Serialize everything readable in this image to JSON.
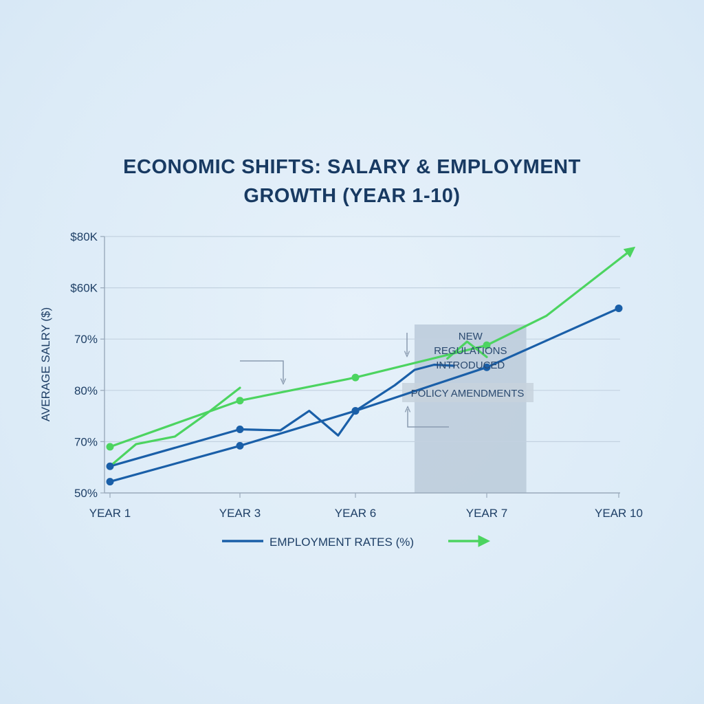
{
  "title_lines": [
    "ECONOMIC SHIFTS: SALARY & EMPLOYMENT",
    "GROWTH (YEAR 1-10)"
  ],
  "colors": {
    "background": "#dfedf8",
    "title": "#183a62",
    "salary_series": "#1a5fa8",
    "employment_series": "#4cd460",
    "grid": "#c3d2e0",
    "shaded_region": "#b5c6d6",
    "annotation_box": "#c7d2dd"
  },
  "legend": {
    "label": "EMPLOYMENT RATES (%)",
    "position": "bottom-center"
  },
  "annotations": [
    {
      "id": "new-regulations",
      "lines": [
        "NEW",
        "REGULATIONS",
        "INTRODUCED"
      ]
    },
    {
      "id": "policy-amendments",
      "lines": [
        "POLICY AMENDMENTS"
      ]
    }
  ],
  "chart_data": {
    "type": "line",
    "title": "ECONOMIC SHIFTS: SALARY & EMPLOYMENT GROWTH (YEAR 1-10)",
    "xlabel": "",
    "ylabel": "AVERAGE SALRY ($)",
    "categories": [
      "YEAR 1",
      "YEAR 3",
      "YEAR 6",
      "YEAR 7",
      "YEAR 10"
    ],
    "y_tick_labels": [
      "50%",
      "70%",
      "80%",
      "70%",
      "$60K",
      "$80K"
    ],
    "ylim": [
      0,
      5
    ],
    "grid": true,
    "shaded_span": {
      "from": 2.45,
      "to": 3.3
    },
    "series": [
      {
        "role": "salary_trend",
        "color": "#1a5fa8",
        "x": [
          0,
          1,
          2,
          3,
          4
        ],
        "values": [
          0.22,
          0.92,
          1.6,
          2.45,
          3.6
        ],
        "markers": [
          0,
          1,
          2,
          3,
          4
        ]
      },
      {
        "role": "salary_jagged",
        "color": "#1a5fa8",
        "x": [
          0,
          1,
          1.35,
          1.6,
          1.85,
          2.0,
          2.3,
          2.45,
          2.6,
          2.75
        ],
        "values": [
          0.52,
          1.24,
          1.22,
          1.6,
          1.12,
          1.6,
          2.1,
          2.4,
          2.5,
          2.48
        ],
        "markers": [
          0,
          1,
          5
        ]
      },
      {
        "role": "employment_trend",
        "color": "#4cd460",
        "x": [
          0,
          1,
          2,
          3,
          3.45,
          4.1
        ],
        "values": [
          0.9,
          1.8,
          2.25,
          2.88,
          3.45,
          4.75
        ],
        "markers": [
          0,
          1,
          2,
          3
        ],
        "arrow_end": true
      },
      {
        "role": "employment_jagged",
        "color": "#4cd460",
        "x": [
          0,
          0.2,
          0.5,
          0.72,
          1.0
        ],
        "values": [
          0.52,
          0.95,
          1.1,
          1.5,
          2.05
        ]
      },
      {
        "role": "employment_spike",
        "color": "#4cd460",
        "x": [
          2.7,
          2.85,
          3.0
        ],
        "values": [
          2.62,
          2.95,
          2.65
        ]
      }
    ]
  }
}
